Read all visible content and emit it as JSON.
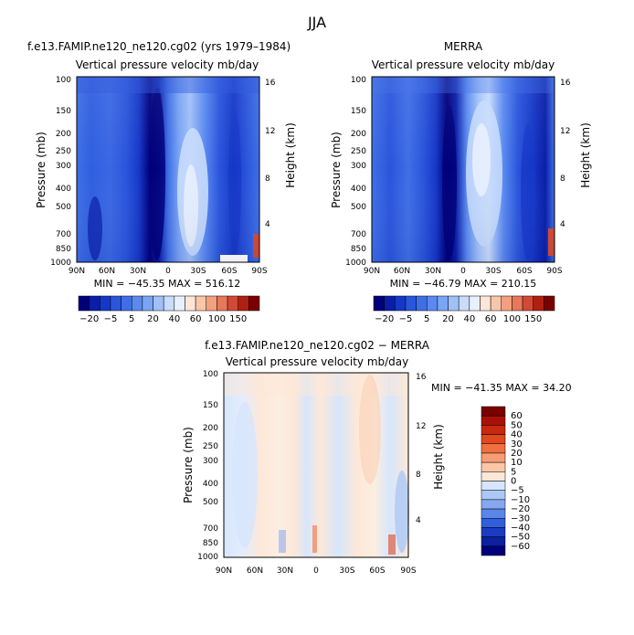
{
  "figure": {
    "title": "JJA"
  },
  "chart_data": [
    {
      "type": "heatmap",
      "title": "f.e13.FAMIP.ne120_ne120.cg02 (yrs 1979–1984)",
      "subtitle": "Vertical pressure velocity mb/day",
      "ylabel": "Pressure (mb)",
      "y2label": "Height (km)",
      "x_ticks": [
        "90N",
        "60N",
        "30N",
        "0",
        "30S",
        "60S",
        "90S"
      ],
      "y_ticks": [
        "100",
        "150",
        "200",
        "250",
        "300",
        "400",
        "500",
        "700",
        "850",
        "1000"
      ],
      "y2_ticks": [
        "16",
        "12",
        "8",
        "4"
      ],
      "stats": "MIN = −45.35   MAX = 516.12",
      "colorbar_labels": [
        "−20",
        "−5",
        "5",
        "20",
        "40",
        "60",
        "100",
        "150"
      ]
    },
    {
      "type": "heatmap",
      "title": "MERRA",
      "subtitle": "Vertical pressure velocity mb/day",
      "ylabel": "Pressure (mb)",
      "y2label": "Height (km)",
      "x_ticks": [
        "90N",
        "60N",
        "30N",
        "0",
        "30S",
        "60S",
        "90S"
      ],
      "y_ticks": [
        "100",
        "150",
        "200",
        "250",
        "300",
        "400",
        "500",
        "700",
        "850",
        "1000"
      ],
      "y2_ticks": [
        "16",
        "12",
        "8",
        "4"
      ],
      "stats": "MIN = −46.79   MAX = 210.15",
      "colorbar_labels": [
        "−20",
        "−5",
        "5",
        "20",
        "40",
        "60",
        "100",
        "150"
      ]
    },
    {
      "type": "heatmap",
      "title": "f.e13.FAMIP.ne120_ne120.cg02 − MERRA",
      "subtitle": "Vertical pressure velocity mb/day",
      "ylabel": "Pressure (mb)",
      "y2label": "Height (km)",
      "x_ticks": [
        "90N",
        "60N",
        "30N",
        "0",
        "30S",
        "60S",
        "90S"
      ],
      "y_ticks": [
        "100",
        "150",
        "200",
        "250",
        "300",
        "400",
        "500",
        "700",
        "850",
        "1000"
      ],
      "y2_ticks": [
        "16",
        "12",
        "8",
        "4"
      ],
      "stats": "MIN = −41.35   MAX =  34.20",
      "colorbar_labels": [
        "60",
        "50",
        "40",
        "30",
        "20",
        "10",
        "5",
        "0",
        "−5",
        "−10",
        "−20",
        "−30",
        "−40",
        "−50",
        "−60"
      ]
    }
  ],
  "colors": {
    "scale_full": [
      "#00007a",
      "#0a1ea8",
      "#1638c8",
      "#2a55dc",
      "#3f6fe6",
      "#5a8af0",
      "#7aa4f4",
      "#a0c0f8",
      "#c8dcfc",
      "#e8f0fe",
      "#fde6d8",
      "#f8c6a8",
      "#f2a07e",
      "#e8785a",
      "#d24a34",
      "#b02012",
      "#7a0000"
    ],
    "scale_diff": [
      "#7a0000",
      "#a81206",
      "#c8280e",
      "#e0481e",
      "#f07040",
      "#f89c74",
      "#fbc7a6",
      "#fde8d8",
      "#d6e6fc",
      "#adc8f6",
      "#86a8f0",
      "#5a86e8",
      "#2f5fdc",
      "#1a3cc2",
      "#0c20a0",
      "#00007a"
    ]
  }
}
